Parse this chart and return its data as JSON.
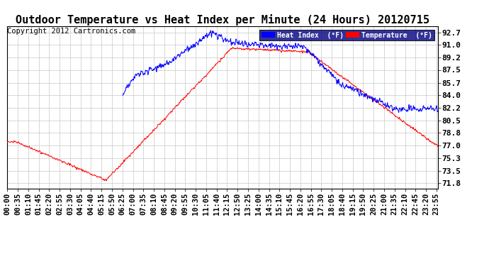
{
  "title": "Outdoor Temperature vs Heat Index per Minute (24 Hours) 20120715",
  "copyright": "Copyright 2012 Cartronics.com",
  "legend_heat": "Heat Index  (°F)",
  "legend_temp": "Temperature  (°F)",
  "yticks": [
    71.8,
    73.5,
    75.3,
    77.0,
    78.8,
    80.5,
    82.2,
    84.0,
    85.7,
    87.5,
    89.2,
    91.0,
    92.7
  ],
  "ylim": [
    71.0,
    93.5
  ],
  "background_color": "#ffffff",
  "grid_color": "#c8c8c8",
  "title_fontsize": 11,
  "copyright_fontsize": 7.5,
  "tick_fontsize": 8,
  "heat_index_color": "#0000ff",
  "temperature_color": "#ff0000",
  "num_minutes": 1440,
  "xtick_step": 35
}
